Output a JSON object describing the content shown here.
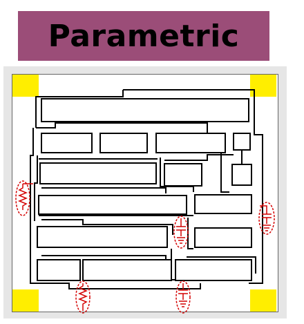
{
  "title": "Parametric",
  "colors": {
    "banner": "#9b4d78",
    "frame": "#e6e6e6",
    "pad": "#ffee00",
    "wire": "#000000",
    "marker": "#d40000"
  },
  "icons": [
    "resistor-symbol",
    "capacitor-symbol"
  ]
}
